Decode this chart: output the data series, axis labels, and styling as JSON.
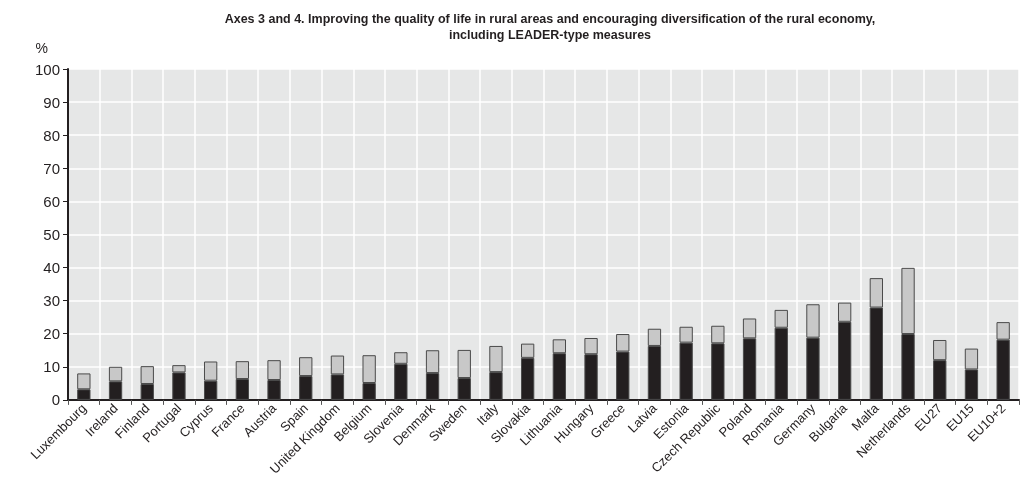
{
  "chart_data": {
    "type": "bar",
    "title": "Axes 3 and 4. Improving the quality of life in rural areas and encouraging diversification of the rural economy,\nincluding LEADER-type measures",
    "ylabel": "%",
    "categories": [
      "Luxembourg",
      "Ireland",
      "Finland",
      "Portugal",
      "Cyprus",
      "France",
      "Austria",
      "Spain",
      "United Kingdom",
      "Belgium",
      "Slovenia",
      "Denmark",
      "Sweden",
      "Italy",
      "Slovakia",
      "Lithuania",
      "Hungary",
      "Greece",
      "Latvia",
      "Estonia",
      "Czech Republic",
      "Poland",
      "Romania",
      "Germany",
      "Bulgaria",
      "Malta",
      "Netherlands",
      "EU27",
      "EU15",
      "EU10+2"
    ],
    "stacked": true,
    "series": [
      {
        "color": "#231f20",
        "values": [
          3.2,
          5.6,
          4.8,
          8.3,
          5.8,
          6.3,
          6.0,
          7.2,
          7.7,
          5.1,
          10.9,
          8.1,
          6.6,
          8.4,
          12.7,
          14.1,
          13.8,
          14.6,
          16.3,
          17.3,
          17.1,
          18.6,
          21.8,
          18.8,
          23.6,
          27.9,
          19.9,
          12.0,
          9.2,
          18.2
        ]
      },
      {
        "color": "#c8c8c8",
        "values": [
          4.8,
          4.4,
          5.4,
          2.2,
          5.8,
          5.4,
          6.0,
          5.7,
          5.7,
          8.4,
          3.5,
          6.9,
          8.5,
          7.9,
          4.3,
          4.2,
          4.9,
          5.3,
          5.2,
          4.8,
          5.3,
          6.0,
          5.4,
          10.1,
          5.8,
          8.9,
          20.0,
          6.1,
          6.3,
          5.3
        ]
      }
    ],
    "ylim": [
      0,
      100
    ],
    "yticks": [
      0,
      10,
      20,
      30,
      40,
      50,
      60,
      70,
      80,
      90,
      100
    ],
    "grid": true
  }
}
